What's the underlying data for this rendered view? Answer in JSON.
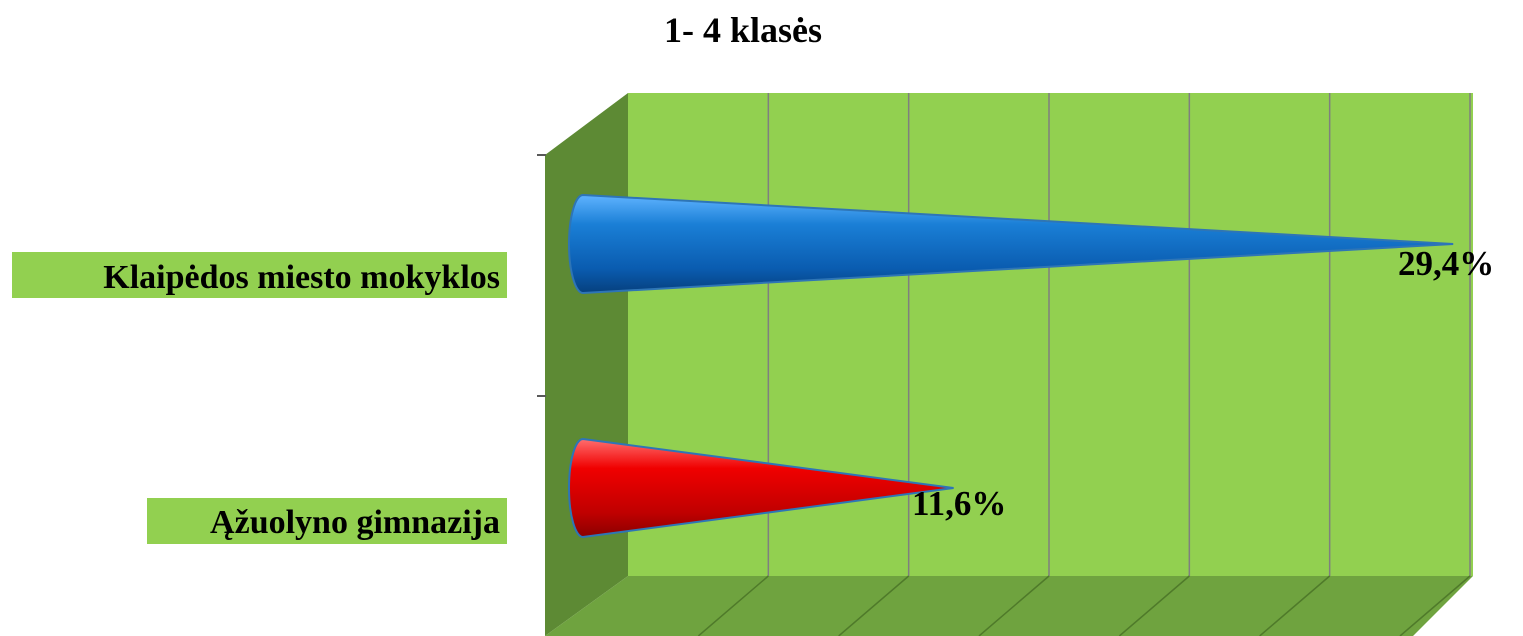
{
  "chart_data": {
    "type": "bar",
    "orientation": "horizontal",
    "style": "3d-cone",
    "title": "1- 4 klasės",
    "categories": [
      "Klaipėdos miesto mokyklos",
      "Ąžuolyno gimnazija"
    ],
    "values": [
      29.4,
      11.6
    ],
    "data_labels": [
      "29,4%",
      "11,6%"
    ],
    "bar_colors": [
      "#1a7fd6",
      "#e00000"
    ],
    "xlim": [
      0,
      30
    ],
    "x_gridlines": [
      0,
      5,
      10,
      15,
      20,
      25,
      30
    ],
    "x_tick_labels_visible": false,
    "grid": true,
    "legend": "none",
    "colors": {
      "back_wall": "#92d050",
      "side_wall": "#5d8a34",
      "floor": "#6fa33f",
      "gridline": "#7f7f7f",
      "label_background": "#92d050"
    }
  }
}
